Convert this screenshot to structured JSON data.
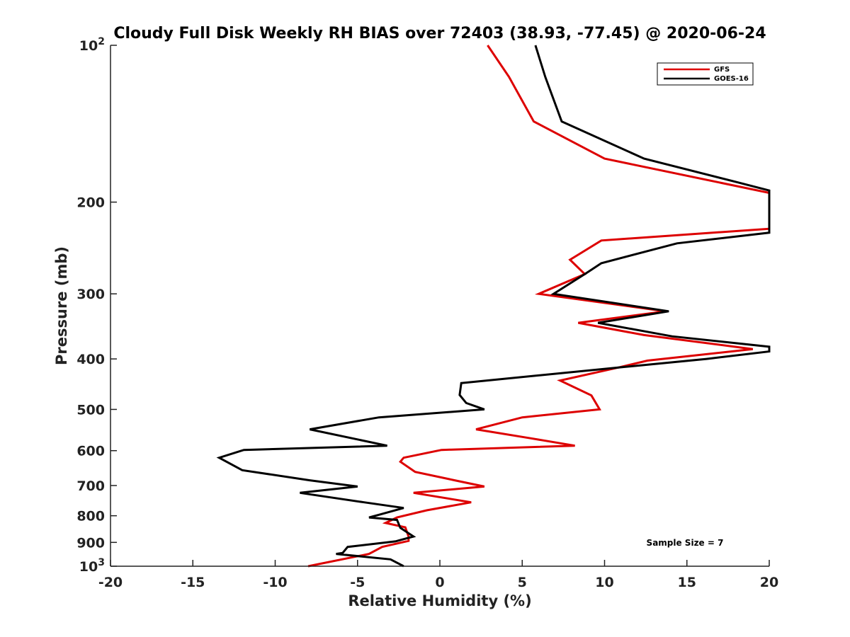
{
  "chart_data": {
    "type": "line",
    "title": "Cloudy Full Disk Weekly RH BIAS over 72403 (38.93, -77.45) @ 2020-06-24",
    "xlabel": "Relative Humidity (%)",
    "ylabel": "Pressure (mb)",
    "xlim": [
      -20,
      20
    ],
    "ylim": [
      100,
      1000
    ],
    "y_scale": "log",
    "y_reversed": true,
    "x_ticks": [
      "-20",
      "-15",
      "-10",
      "-5",
      "0",
      "5",
      "10",
      "15",
      "20"
    ],
    "y_ticks": [
      {
        "value": 100,
        "base": "10",
        "exp": "2"
      },
      {
        "value": 200,
        "label": "200"
      },
      {
        "value": 300,
        "label": "300"
      },
      {
        "value": 400,
        "label": "400"
      },
      {
        "value": 500,
        "label": "500"
      },
      {
        "value": 600,
        "label": "600"
      },
      {
        "value": 700,
        "label": "700"
      },
      {
        "value": 800,
        "label": "800"
      },
      {
        "value": 900,
        "label": "900"
      },
      {
        "value": 1000,
        "base": "10",
        "exp": "3"
      }
    ],
    "legend_position": "top-right",
    "grid": false,
    "annotation": "Sample Size = 7",
    "series": [
      {
        "name": "GFS",
        "color": "#dd0000",
        "points": [
          [
            2.9,
            100
          ],
          [
            4.2,
            115
          ],
          [
            5.7,
            140
          ],
          [
            10.0,
            165
          ],
          [
            20.0,
            192
          ],
          [
            20.0,
            225
          ],
          [
            9.8,
            237
          ],
          [
            7.9,
            258
          ],
          [
            8.8,
            275
          ],
          [
            6.0,
            300
          ],
          [
            13.7,
            324
          ],
          [
            8.4,
            341
          ],
          [
            12.4,
            360
          ],
          [
            19.0,
            383
          ],
          [
            12.6,
            403
          ],
          [
            10.9,
            415
          ],
          [
            7.3,
            440
          ],
          [
            9.2,
            470
          ],
          [
            9.7,
            500
          ],
          [
            5.0,
            518
          ],
          [
            2.2,
            546
          ],
          [
            5.5,
            568
          ],
          [
            8.2,
            587
          ],
          [
            0.1,
            598
          ],
          [
            -2.2,
            619
          ],
          [
            -2.4,
            630
          ],
          [
            -1.5,
            659
          ],
          [
            0.9,
            684
          ],
          [
            2.7,
            703
          ],
          [
            -1.6,
            723
          ],
          [
            1.9,
            754
          ],
          [
            -0.8,
            781
          ],
          [
            -2.6,
            806
          ],
          [
            -3.3,
            826
          ],
          [
            -2.1,
            842
          ],
          [
            -1.9,
            877
          ],
          [
            -1.9,
            894
          ],
          [
            -3.5,
            918
          ],
          [
            -4.3,
            947
          ],
          [
            -8.0,
            1000
          ]
        ]
      },
      {
        "name": "GOES-16",
        "color": "#000000",
        "points": [
          [
            5.8,
            100
          ],
          [
            6.4,
            115
          ],
          [
            7.4,
            140
          ],
          [
            12.4,
            165
          ],
          [
            18.3,
            184
          ],
          [
            20.0,
            190
          ],
          [
            20.0,
            229
          ],
          [
            14.4,
            240
          ],
          [
            9.8,
            262
          ],
          [
            8.8,
            275
          ],
          [
            6.9,
            300
          ],
          [
            13.9,
            324
          ],
          [
            9.6,
            341
          ],
          [
            14.1,
            362
          ],
          [
            20.0,
            379
          ],
          [
            20.0,
            387
          ],
          [
            16.2,
            400
          ],
          [
            11.0,
            415
          ],
          [
            1.3,
            445
          ],
          [
            1.2,
            469
          ],
          [
            1.6,
            486
          ],
          [
            2.7,
            500
          ],
          [
            -3.7,
            518
          ],
          [
            -7.9,
            546
          ],
          [
            -3.2,
            587
          ],
          [
            -11.9,
            598
          ],
          [
            -13.4,
            619
          ],
          [
            -12.0,
            654
          ],
          [
            -7.9,
            684
          ],
          [
            -5.0,
            703
          ],
          [
            -8.5,
            723
          ],
          [
            -4.6,
            754
          ],
          [
            -2.2,
            773
          ],
          [
            -3.6,
            795
          ],
          [
            -4.3,
            806
          ],
          [
            -2.6,
            815
          ],
          [
            -2.4,
            844
          ],
          [
            -1.6,
            877
          ],
          [
            -2.7,
            896
          ],
          [
            -5.6,
            918
          ],
          [
            -5.9,
            943
          ],
          [
            -6.3,
            947
          ],
          [
            -3.0,
            970
          ],
          [
            -2.2,
            1000
          ]
        ]
      }
    ]
  }
}
